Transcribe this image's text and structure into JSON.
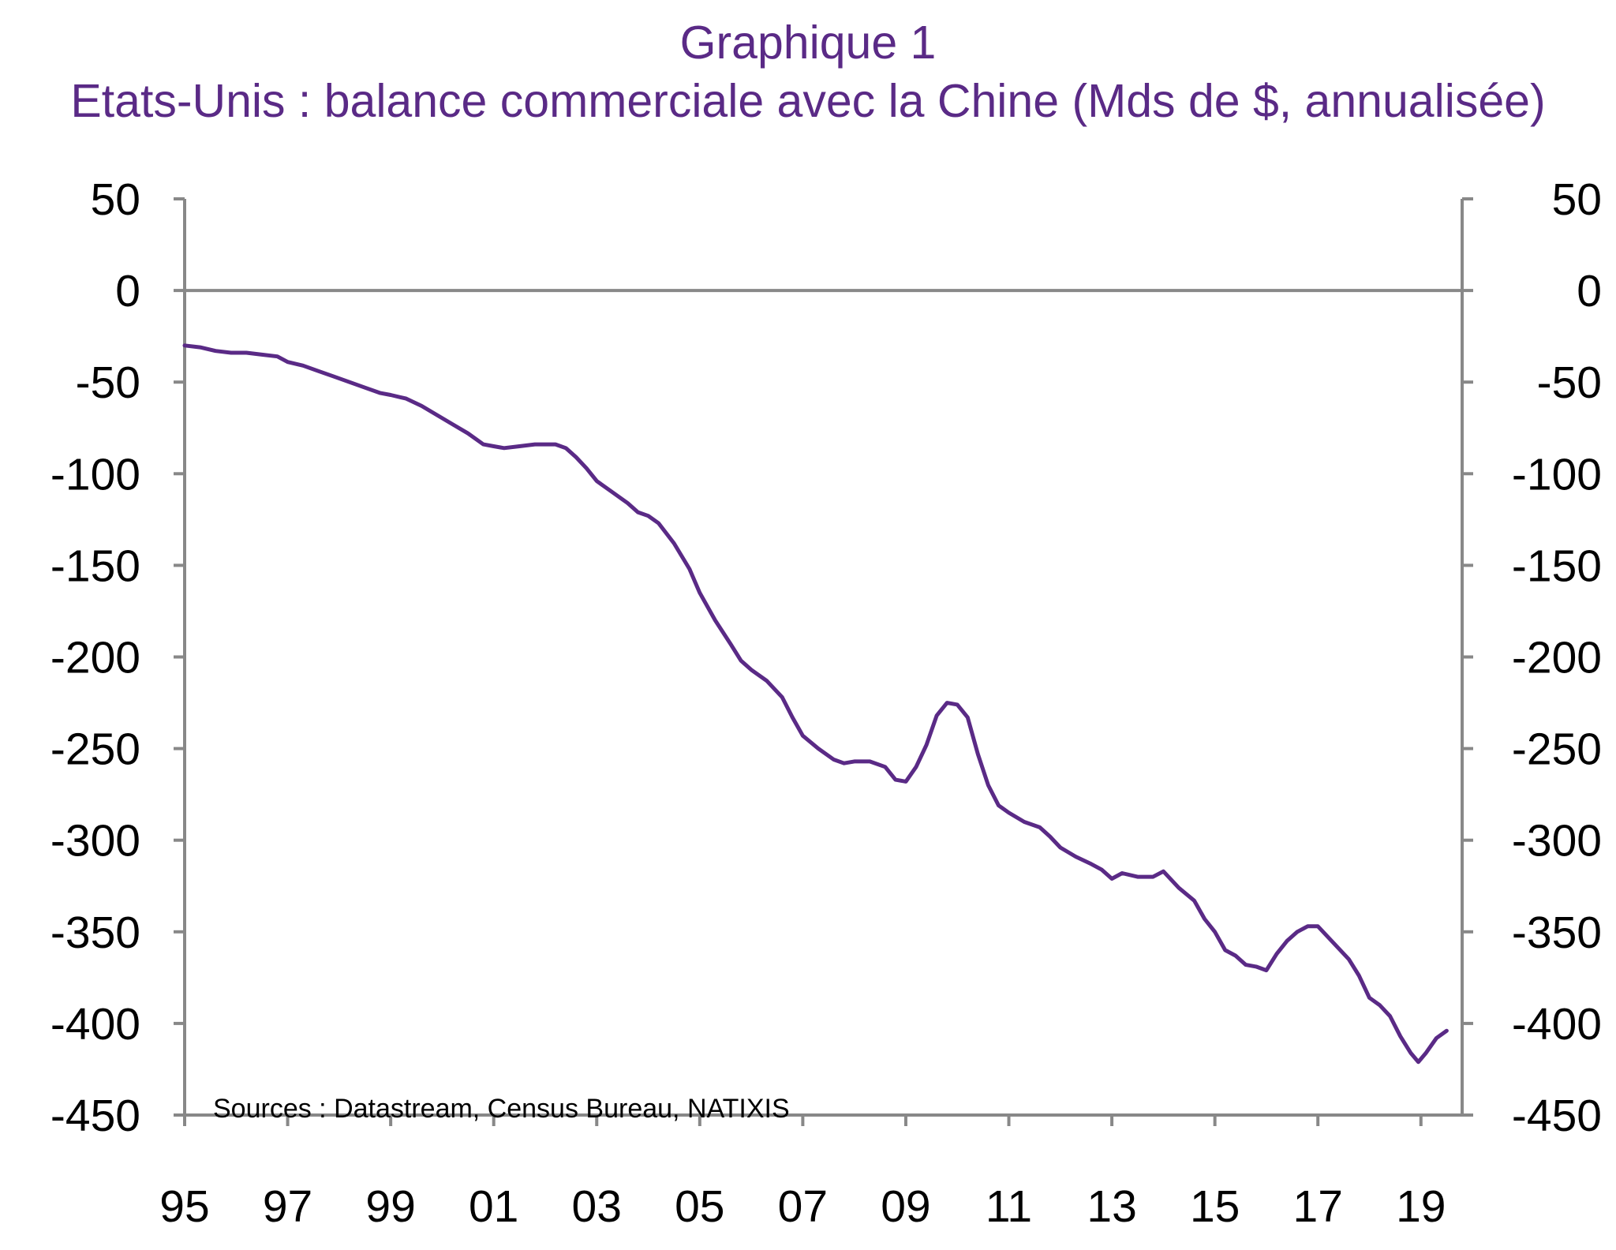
{
  "chart_data": {
    "type": "line",
    "title": "Graphique 1",
    "subtitle": "Etats-Unis : balance commerciale avec la Chine (Mds de $, annualisée)",
    "xlabel": "",
    "ylabel": "",
    "source": "Sources : Datastream, Census Bureau, NATIXIS",
    "xlim": [
      1995.0,
      2019.8
    ],
    "ylim": [
      -450,
      50
    ],
    "yticks": [
      50,
      0,
      -50,
      -100,
      -150,
      -200,
      -250,
      -300,
      -350,
      -400,
      -450
    ],
    "ytick_labels": [
      "50",
      "0",
      "-50",
      "-100",
      "-150",
      "-200",
      "-250",
      "-300",
      "-350",
      "-400",
      "-450"
    ],
    "xticks": [
      1995,
      1997,
      1999,
      2001,
      2003,
      2005,
      2007,
      2009,
      2011,
      2013,
      2015,
      2017,
      2019
    ],
    "xtick_labels": [
      "95",
      "97",
      "99",
      "01",
      "03",
      "05",
      "07",
      "09",
      "11",
      "13",
      "15",
      "17",
      "19"
    ],
    "grid": false,
    "zero_line": true,
    "dual_y_axis": true,
    "colors": {
      "line": "#5a2a86",
      "axis": "#888888",
      "title": "#5a2a86"
    },
    "series": [
      {
        "x": [
          1995.0,
          1995.3,
          1995.6,
          1995.9,
          1996.2,
          1996.5,
          1996.8,
          1997.0,
          1997.3,
          1997.6,
          1997.9,
          1998.2,
          1998.5,
          1998.8,
          1999.0,
          1999.3,
          1999.6,
          1999.9,
          2000.2,
          2000.5,
          2000.8,
          2001.0,
          2001.2,
          2001.5,
          2001.8,
          2002.0,
          2002.2,
          2002.4,
          2002.6,
          2002.8,
          2003.0,
          2003.3,
          2003.6,
          2003.8,
          2004.0,
          2004.2,
          2004.5,
          2004.8,
          2005.0,
          2005.3,
          2005.6,
          2005.8,
          2006.0,
          2006.3,
          2006.6,
          2006.8,
          2007.0,
          2007.3,
          2007.6,
          2007.8,
          2008.0,
          2008.3,
          2008.6,
          2008.8,
          2009.0,
          2009.2,
          2009.4,
          2009.6,
          2009.8,
          2010.0,
          2010.2,
          2010.4,
          2010.6,
          2010.8,
          2011.0,
          2011.3,
          2011.6,
          2011.8,
          2012.0,
          2012.3,
          2012.6,
          2012.8,
          2013.0,
          2013.2,
          2013.5,
          2013.8,
          2014.0,
          2014.3,
          2014.6,
          2014.8,
          2015.0,
          2015.2,
          2015.4,
          2015.6,
          2015.8,
          2016.0,
          2016.2,
          2016.4,
          2016.6,
          2016.8,
          2017.0,
          2017.3,
          2017.6,
          2017.8,
          2018.0,
          2018.2,
          2018.4,
          2018.6,
          2018.8,
          2018.95,
          2019.1,
          2019.3,
          2019.5
        ],
        "values": [
          -30,
          -31,
          -33,
          -34,
          -34,
          -35,
          -36,
          -39,
          -41,
          -44,
          -47,
          -50,
          -53,
          -56,
          -57,
          -59,
          -63,
          -68,
          -73,
          -78,
          -84,
          -85,
          -86,
          -85,
          -84,
          -84,
          -84,
          -86,
          -91,
          -97,
          -104,
          -110,
          -116,
          -121,
          -123,
          -127,
          -138,
          -152,
          -165,
          -180,
          -193,
          -202,
          -207,
          -213,
          -222,
          -233,
          -243,
          -250,
          -256,
          -258,
          -257,
          -257,
          -260,
          -267,
          -268,
          -260,
          -248,
          -232,
          -225,
          -226,
          -233,
          -253,
          -270,
          -281,
          -285,
          -290,
          -293,
          -298,
          -304,
          -309,
          -313,
          -316,
          -321,
          -318,
          -320,
          -320,
          -317,
          -326,
          -333,
          -343,
          -350,
          -360,
          -363,
          -368,
          -369,
          -371,
          -362,
          -355,
          -350,
          -347,
          -347,
          -356,
          -365,
          -374,
          -386,
          -390,
          -396,
          -407,
          -416,
          -421,
          -416,
          -408,
          -404
        ]
      }
    ]
  }
}
